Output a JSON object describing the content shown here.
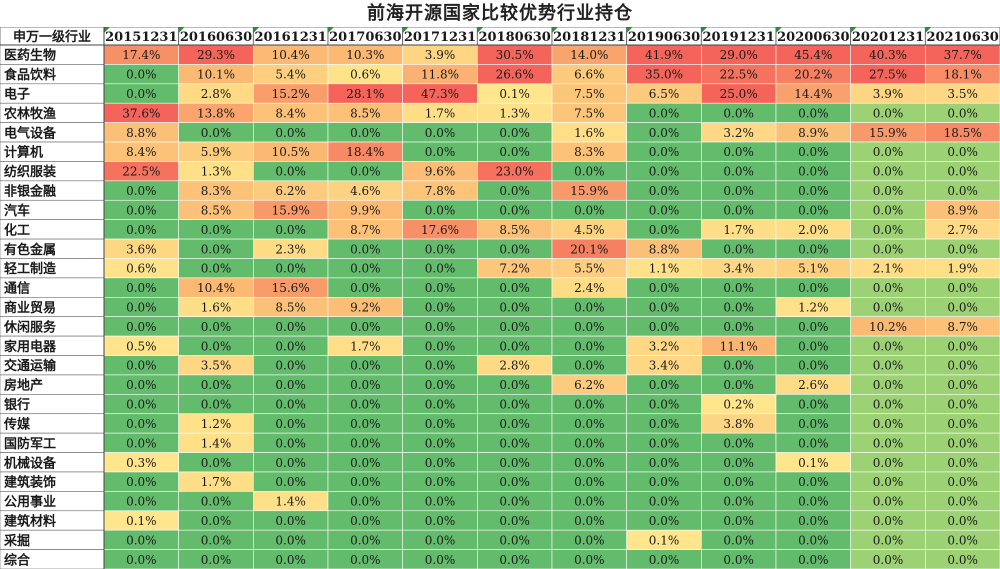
{
  "title": "前海开源国家比较优势行业持仓",
  "colors": {
    "high": "#f4645a",
    "mid": "#fbbb74",
    "low": "#ffe68c",
    "zero": "#63bb6c",
    "zero_light": "#9cd274",
    "text": "#1a1a1a"
  },
  "chart_data": {
    "type": "heatmap",
    "title": "前海开源国家比较优势行业持仓",
    "corner_label": "申万一级行业",
    "columns": [
      "20151231",
      "20160630",
      "20161231",
      "20170630",
      "20171231",
      "20180630",
      "20181231",
      "20190630",
      "20191231",
      "20200630",
      "20201231",
      "20210630"
    ],
    "rows": [
      {
        "name": "医药生物",
        "values": [
          17.4,
          29.3,
          10.4,
          10.3,
          3.9,
          30.5,
          14.0,
          41.9,
          29.0,
          45.4,
          40.3,
          37.7
        ]
      },
      {
        "name": "食品饮料",
        "values": [
          0.0,
          10.1,
          5.4,
          0.6,
          11.8,
          26.6,
          6.6,
          35.0,
          22.5,
          20.2,
          27.5,
          18.1
        ]
      },
      {
        "name": "电子",
        "values": [
          0.0,
          2.8,
          15.2,
          28.1,
          47.3,
          0.1,
          7.5,
          6.5,
          25.0,
          14.4,
          3.9,
          3.5
        ]
      },
      {
        "name": "农林牧渔",
        "values": [
          37.6,
          13.8,
          8.4,
          8.5,
          1.7,
          1.3,
          7.5,
          0.0,
          0.0,
          0.0,
          0.0,
          0.0
        ]
      },
      {
        "name": "电气设备",
        "values": [
          8.8,
          0.0,
          0.0,
          0.0,
          0.0,
          0.0,
          1.6,
          0.0,
          3.2,
          8.9,
          15.9,
          18.5
        ]
      },
      {
        "name": "计算机",
        "values": [
          8.4,
          5.9,
          10.5,
          18.4,
          0.0,
          0.0,
          8.3,
          0.0,
          0.0,
          0.0,
          0.0,
          0.0
        ]
      },
      {
        "name": "纺织服装",
        "values": [
          22.5,
          1.3,
          0.0,
          0.0,
          9.6,
          23.0,
          0.0,
          0.0,
          0.0,
          0.0,
          0.0,
          0.0
        ]
      },
      {
        "name": "非银金融",
        "values": [
          0.0,
          8.3,
          6.2,
          4.6,
          7.8,
          0.0,
          15.9,
          0.0,
          0.0,
          0.0,
          0.0,
          0.0
        ]
      },
      {
        "name": "汽车",
        "values": [
          0.0,
          8.5,
          15.9,
          9.9,
          0.0,
          0.0,
          0.0,
          0.0,
          0.0,
          0.0,
          0.0,
          8.9
        ]
      },
      {
        "name": "化工",
        "values": [
          0.0,
          0.0,
          0.0,
          8.7,
          17.6,
          8.5,
          4.5,
          0.0,
          1.7,
          2.0,
          0.0,
          2.7
        ]
      },
      {
        "name": "有色金属",
        "values": [
          3.6,
          0.0,
          2.3,
          0.0,
          0.0,
          0.0,
          20.1,
          8.8,
          0.0,
          0.0,
          0.0,
          0.0
        ]
      },
      {
        "name": "轻工制造",
        "values": [
          0.6,
          0.0,
          0.0,
          0.0,
          0.0,
          7.2,
          5.5,
          1.1,
          3.4,
          5.1,
          2.1,
          1.9
        ]
      },
      {
        "name": "通信",
        "values": [
          0.0,
          10.4,
          15.6,
          0.0,
          0.0,
          0.0,
          2.4,
          0.0,
          0.0,
          0.0,
          0.0,
          0.0
        ]
      },
      {
        "name": "商业贸易",
        "values": [
          0.0,
          1.6,
          8.5,
          9.2,
          0.0,
          0.0,
          0.0,
          0.0,
          0.0,
          1.2,
          0.0,
          0.0
        ]
      },
      {
        "name": "休闲服务",
        "values": [
          0.0,
          0.0,
          0.0,
          0.0,
          0.0,
          0.0,
          0.0,
          0.0,
          0.0,
          0.0,
          10.2,
          8.7
        ]
      },
      {
        "name": "家用电器",
        "values": [
          0.5,
          0.0,
          0.0,
          1.7,
          0.0,
          0.0,
          0.0,
          3.2,
          11.1,
          0.0,
          0.0,
          0.0
        ]
      },
      {
        "name": "交通运输",
        "values": [
          0.0,
          3.5,
          0.0,
          0.0,
          0.0,
          2.8,
          0.0,
          3.4,
          0.0,
          0.0,
          0.0,
          0.0
        ]
      },
      {
        "name": "房地产",
        "values": [
          0.0,
          0.0,
          0.0,
          0.0,
          0.0,
          0.0,
          6.2,
          0.0,
          0.0,
          2.6,
          0.0,
          0.0
        ]
      },
      {
        "name": "银行",
        "values": [
          0.0,
          0.0,
          0.0,
          0.0,
          0.0,
          0.0,
          0.0,
          0.0,
          0.2,
          0.0,
          0.0,
          0.0
        ]
      },
      {
        "name": "传媒",
        "values": [
          0.0,
          1.2,
          0.0,
          0.0,
          0.0,
          0.0,
          0.0,
          0.0,
          3.8,
          0.0,
          0.0,
          0.0
        ]
      },
      {
        "name": "国防军工",
        "values": [
          0.0,
          1.4,
          0.0,
          0.0,
          0.0,
          0.0,
          0.0,
          0.0,
          0.0,
          0.0,
          0.0,
          0.0
        ]
      },
      {
        "name": "机械设备",
        "values": [
          0.3,
          0.0,
          0.0,
          0.0,
          0.0,
          0.0,
          0.0,
          0.0,
          0.0,
          0.1,
          0.0,
          0.0
        ]
      },
      {
        "name": "建筑装饰",
        "values": [
          0.0,
          1.7,
          0.0,
          0.0,
          0.0,
          0.0,
          0.0,
          0.0,
          0.0,
          0.0,
          0.0,
          0.0
        ]
      },
      {
        "name": "公用事业",
        "values": [
          0.0,
          0.0,
          1.4,
          0.0,
          0.0,
          0.0,
          0.0,
          0.0,
          0.0,
          0.0,
          0.0,
          0.0
        ]
      },
      {
        "name": "建筑材料",
        "values": [
          0.1,
          0.0,
          0.0,
          0.0,
          0.0,
          0.0,
          0.0,
          0.0,
          0.0,
          0.0,
          0.0,
          0.0
        ]
      },
      {
        "name": "采掘",
        "values": [
          0.0,
          0.0,
          0.0,
          0.0,
          0.0,
          0.0,
          0.0,
          0.1,
          0.0,
          0.0,
          0.0,
          0.0
        ]
      },
      {
        "name": "综合",
        "values": [
          0.0,
          0.0,
          0.0,
          0.0,
          0.0,
          0.0,
          0.0,
          0.0,
          0.0,
          0.0,
          0.0,
          0.0
        ]
      }
    ],
    "value_suffix": "%",
    "color_scale": "diverging green-yellow-red (0 green, high red)"
  }
}
